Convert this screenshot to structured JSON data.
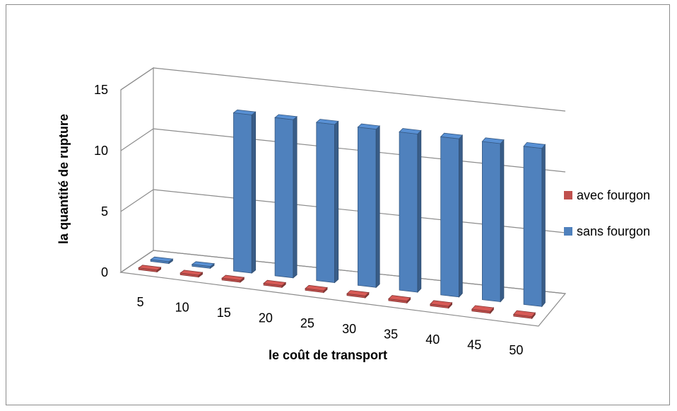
{
  "chart_data": {
    "type": "bar",
    "subtype": "3d-column",
    "title": "",
    "xlabel": "le coût de transport",
    "ylabel": "la quantité de rupture",
    "categories": [
      "5",
      "10",
      "15",
      "20",
      "25",
      "30",
      "35",
      "40",
      "45",
      "50"
    ],
    "ylim": [
      0,
      15
    ],
    "yticks": [
      "0",
      "5",
      "10",
      "15"
    ],
    "grid": true,
    "legend_position": "right",
    "series": [
      {
        "name": "avec fourgon",
        "color": "#c0504d",
        "values": [
          0,
          0,
          0,
          0,
          0,
          0,
          0,
          0,
          0,
          0
        ]
      },
      {
        "name": "sans fourgon",
        "color": "#4f81bd",
        "values": [
          0,
          0,
          13,
          13,
          13,
          13,
          13,
          13,
          13,
          13
        ]
      }
    ]
  }
}
